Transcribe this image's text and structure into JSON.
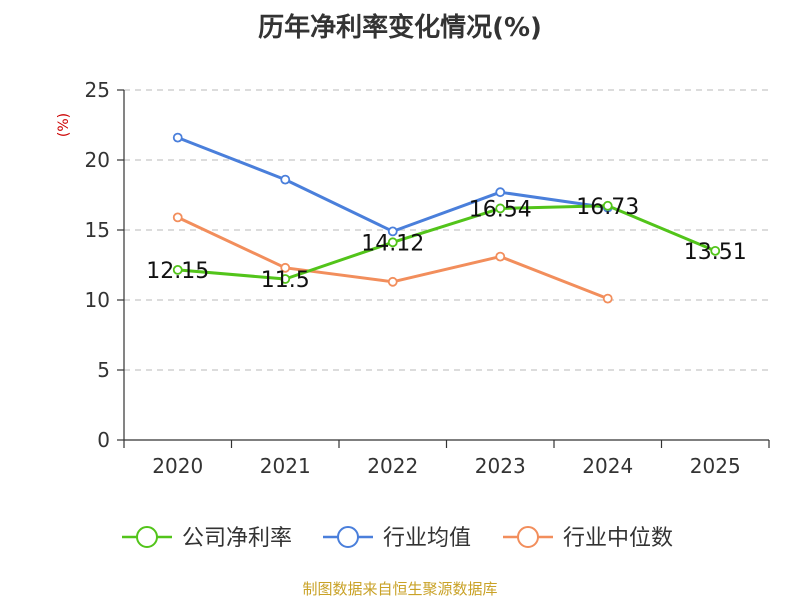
{
  "chart_data": {
    "type": "line",
    "title": "历年净利率变化情况(%)",
    "ylabel": "(%)",
    "xlabel": "",
    "ylim": [
      0,
      25
    ],
    "yticks": [
      0,
      5,
      10,
      15,
      20,
      25
    ],
    "grid": true,
    "legend_position": "bottom",
    "categories": [
      "2020",
      "2021",
      "2022",
      "2023",
      "2024",
      "2025"
    ],
    "series": [
      {
        "name": "公司净利率",
        "color": "#52c41a",
        "values": [
          12.15,
          11.5,
          14.12,
          16.54,
          16.73,
          13.51
        ],
        "labels": [
          "12.15",
          "11.5",
          "14.12",
          "16.54",
          "16.73",
          "13.51"
        ]
      },
      {
        "name": "行业均值",
        "color": "#4a7fdb",
        "values": [
          21.6,
          18.6,
          14.9,
          17.7,
          16.6,
          null
        ]
      },
      {
        "name": "行业中位数",
        "color": "#f28e5c",
        "values": [
          15.9,
          12.3,
          11.3,
          13.1,
          10.1,
          null
        ]
      }
    ]
  },
  "unit_color": "#cc0000",
  "source": {
    "text": "制图数据来自恒生聚源数据库",
    "color": "#c9a227"
  }
}
